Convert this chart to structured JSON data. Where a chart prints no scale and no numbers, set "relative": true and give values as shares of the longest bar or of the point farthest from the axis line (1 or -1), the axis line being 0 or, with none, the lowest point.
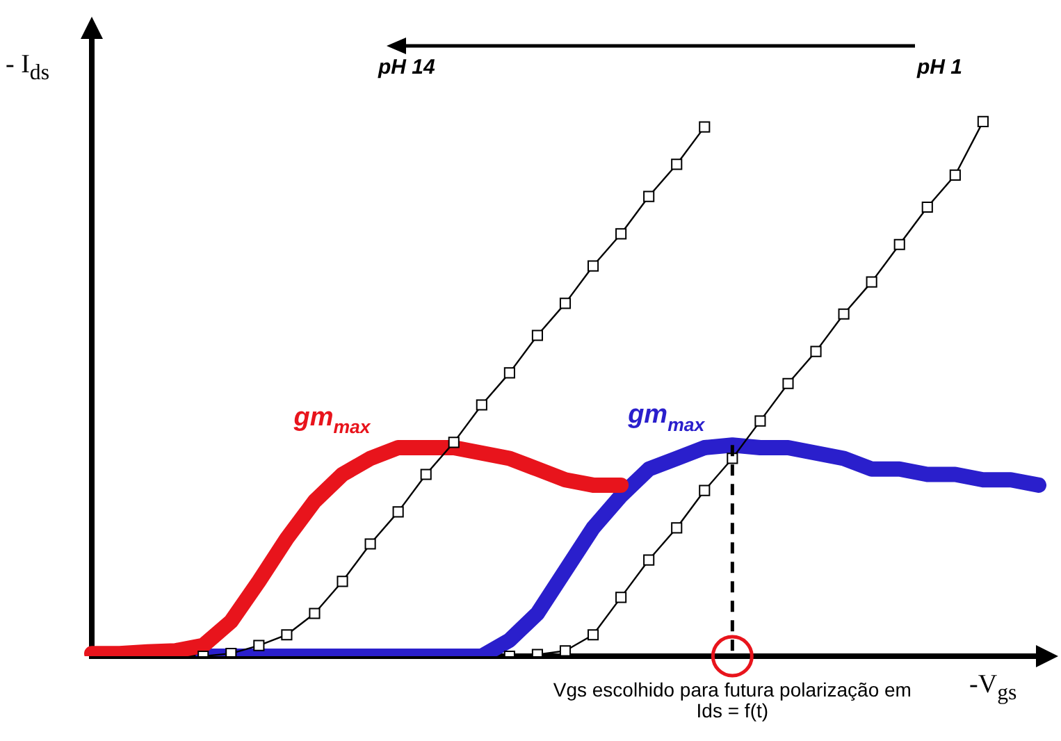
{
  "chart_data": {
    "type": "line",
    "relative": true,
    "xlabel": "-V$_{gs}$",
    "ylabel": "- I$_{ds}$",
    "grid": false,
    "tick_labels": false,
    "categories": [
      null,
      null,
      null,
      null,
      null,
      null,
      null,
      null,
      null,
      null,
      null,
      null,
      null,
      null,
      null,
      null,
      null,
      null,
      null,
      null,
      null,
      null,
      null,
      null,
      null,
      null,
      null,
      null,
      null,
      null,
      null,
      null,
      null,
      null,
      null
    ],
    "series": [
      {
        "name": "gm$_{max}$",
        "color": "#e8141c",
        "marker": "none",
        "values": [
          0.005,
          0.005,
          0.008,
          0.01,
          0.02,
          0.065,
          0.14,
          0.22,
          0.29,
          0.34,
          0.37,
          0.39,
          0.39,
          0.39,
          0.38,
          0.37,
          0.35,
          0.33,
          0.32,
          0.32,
          null,
          null,
          null,
          null,
          null,
          null,
          null,
          null,
          null,
          null,
          null,
          null,
          null,
          null,
          null
        ]
      },
      {
        "color": "#000000",
        "marker": "square",
        "values": [
          null,
          null,
          null,
          null,
          0,
          0.005,
          0.02,
          0.04,
          0.08,
          0.14,
          0.21,
          0.27,
          0.34,
          0.4,
          0.47,
          0.53,
          0.6,
          0.66,
          0.73,
          0.79,
          0.86,
          0.92,
          0.99,
          null,
          null,
          null,
          null,
          null,
          null,
          null,
          null,
          null,
          null,
          null,
          null
        ]
      },
      {
        "name": "gm$_{max}$",
        "color": "#2a1fcc",
        "marker": "none",
        "values": [
          null,
          null,
          null,
          null,
          0,
          0,
          0,
          0,
          0,
          0,
          0,
          0,
          0,
          0,
          0,
          0.03,
          0.08,
          0.16,
          0.24,
          0.3,
          0.35,
          0.37,
          0.39,
          0.395,
          0.39,
          0.39,
          0.38,
          0.37,
          0.35,
          0.35,
          0.34,
          0.34,
          0.33,
          0.33,
          0.32
        ]
      },
      {
        "color": "#000000",
        "marker": "square",
        "values": [
          null,
          null,
          null,
          null,
          null,
          null,
          null,
          null,
          null,
          null,
          null,
          null,
          null,
          null,
          null,
          0,
          0.003,
          0.01,
          0.04,
          0.11,
          0.18,
          0.24,
          0.31,
          0.37,
          0.44,
          0.51,
          0.57,
          0.64,
          0.7,
          0.77,
          0.84,
          0.9,
          1,
          null,
          null
        ]
      }
    ],
    "annotations": [
      "pH 14",
      "pH 1",
      "Vgs escolhido para futura polarização em Ids = f(t)"
    ]
  }
}
